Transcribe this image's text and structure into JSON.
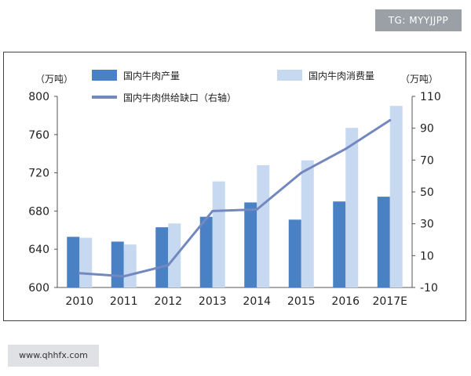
{
  "watermark_top": "TG: MYYJJPP",
  "watermark_bottom": "www.qhhfx.com",
  "chart_data": {
    "type": "bar",
    "categories": [
      "2010",
      "2011",
      "2012",
      "2013",
      "2014",
      "2015",
      "2016",
      "2017E"
    ],
    "series": [
      {
        "name": "国内牛肉产量",
        "type": "bar",
        "axis": "left",
        "color": "#4a80c4",
        "values": [
          653,
          648,
          663,
          674,
          689,
          671,
          690,
          695
        ]
      },
      {
        "name": "国内牛肉消费量",
        "type": "bar",
        "axis": "left",
        "color": "#c6d9f0",
        "values": [
          652,
          645,
          667,
          711,
          728,
          733,
          767,
          790
        ]
      },
      {
        "name": "国内牛肉供给缺口（右轴）",
        "type": "line",
        "axis": "right",
        "color": "#7488c0",
        "values": [
          -1,
          -3,
          4,
          38,
          39,
          62,
          77,
          95
        ]
      }
    ],
    "left_unit": "（万吨）",
    "right_unit": "（万吨）",
    "y_left": {
      "min": 600,
      "max": 800,
      "ticks": [
        600,
        640,
        680,
        720,
        760,
        800
      ]
    },
    "y_right": {
      "min": -10,
      "max": 110,
      "ticks": [
        -10,
        10,
        30,
        50,
        70,
        90,
        110
      ]
    },
    "legend_placement": "top"
  }
}
